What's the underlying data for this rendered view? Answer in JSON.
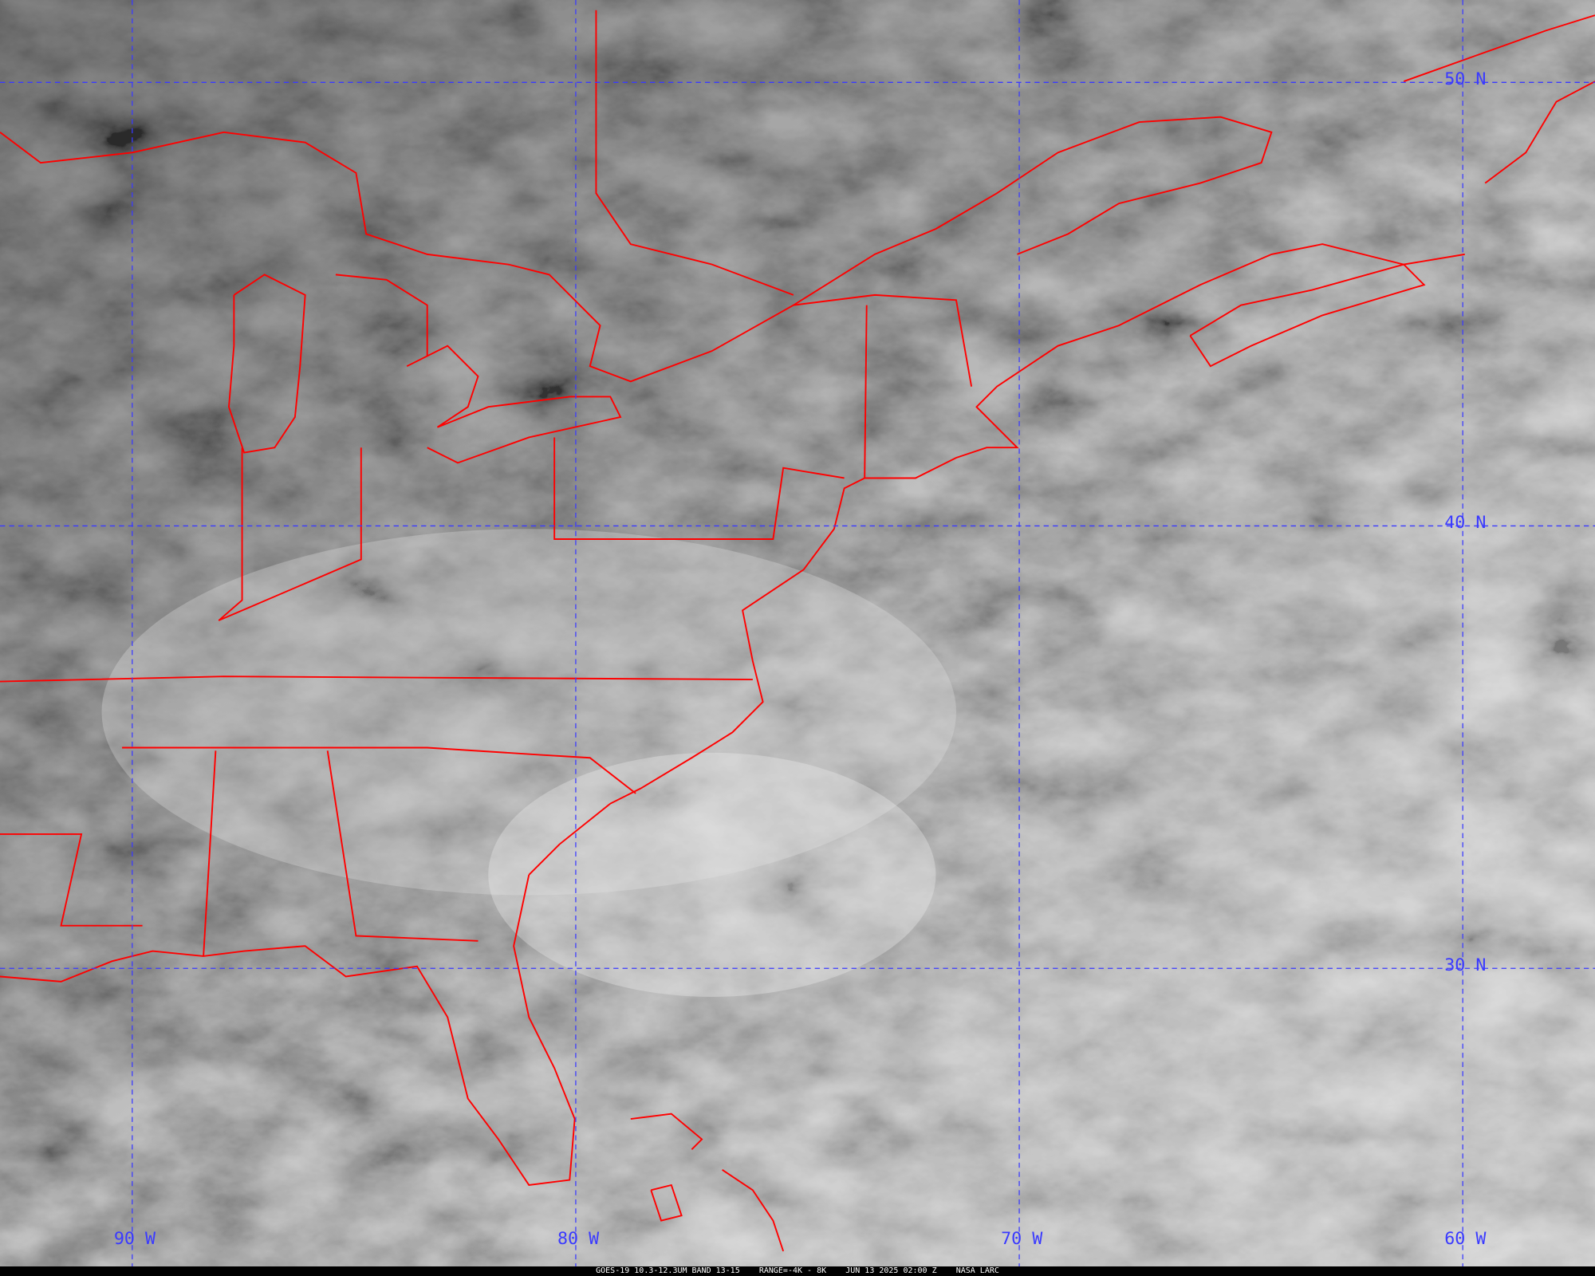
{
  "caption": {
    "satellite": "GOES-19 10.3-12.3UM BAND 13-15",
    "range": "RANGE=-4K - 8K",
    "datetime": "JUN 13 2025 02:00 Z",
    "source": "NASA LARC"
  },
  "grid": {
    "longitudes": [
      "90 W",
      "80 W",
      "70 W",
      "60 W"
    ],
    "latitudes": [
      "50 N",
      "40 N",
      "30 N"
    ]
  },
  "colors": {
    "boundaries": "#ff0000",
    "grid": "#3a3aff",
    "caption_bg": "#000000"
  }
}
